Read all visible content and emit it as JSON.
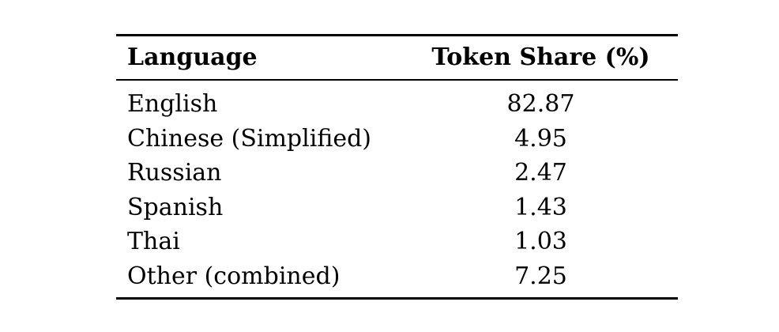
{
  "colors": {
    "background": "#ffffff",
    "text": "#000000",
    "rule": "#000000"
  },
  "table": {
    "columns": {
      "language_header": "Language",
      "share_header": "Token Share (%)"
    },
    "rows": [
      {
        "language": "English",
        "share": "82.87"
      },
      {
        "language": "Chinese (Simplified)",
        "share": "4.95"
      },
      {
        "language": "Russian",
        "share": "2.47"
      },
      {
        "language": "Spanish",
        "share": "1.43"
      },
      {
        "language": "Thai",
        "share": "1.03"
      },
      {
        "language": "Other (combined)",
        "share": "7.25"
      }
    ]
  },
  "chart_data": {
    "type": "table",
    "title": "",
    "columns": [
      "Language",
      "Token Share (%)"
    ],
    "categories": [
      "English",
      "Chinese (Simplified)",
      "Russian",
      "Spanish",
      "Thai",
      "Other (combined)"
    ],
    "values": [
      82.87,
      4.95,
      2.47,
      1.43,
      1.03,
      7.25
    ]
  }
}
